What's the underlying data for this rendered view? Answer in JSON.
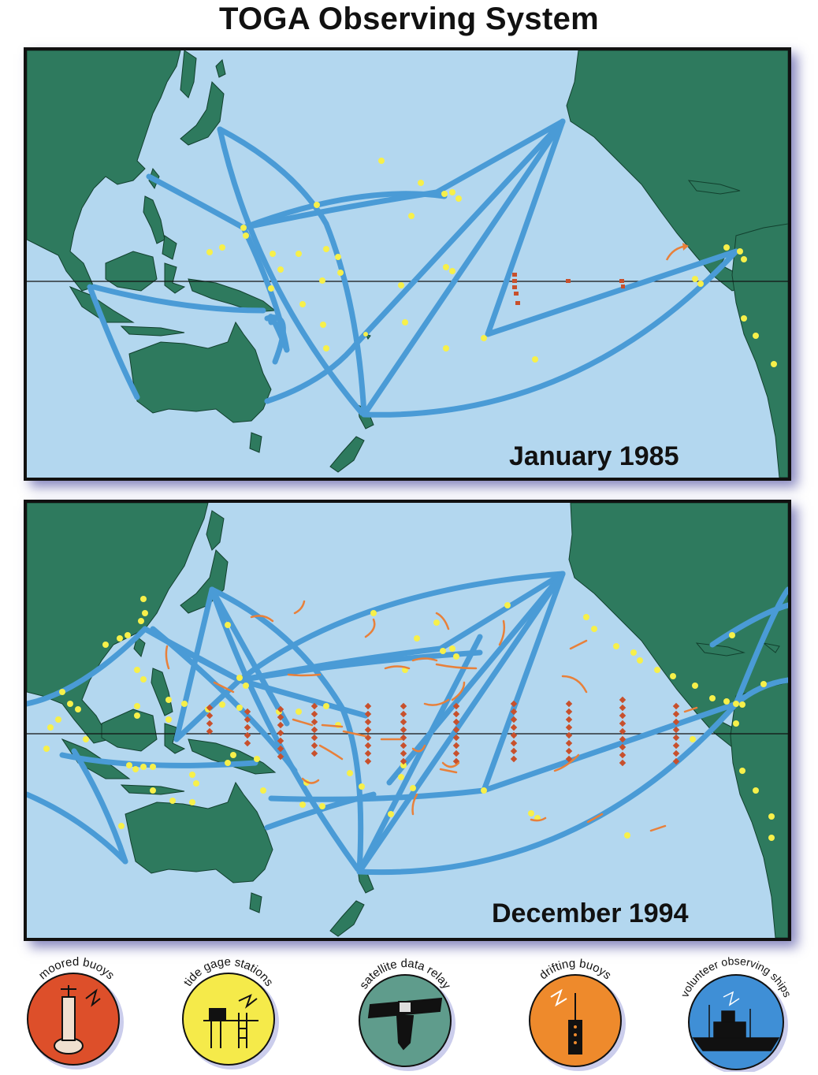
{
  "title": "TOGA Observing System",
  "panels": [
    {
      "label": "January 1985"
    },
    {
      "label": "December 1994"
    }
  ],
  "legend": [
    {
      "label": "moored  buoys",
      "color": "#dd4f2a",
      "icon": "moored-buoy-icon"
    },
    {
      "label": "tide gage stations",
      "color": "#f5ea4a",
      "icon": "tide-gage-icon"
    },
    {
      "label": "satellite data relay",
      "color": "#5f9c8c",
      "icon": "satellite-icon"
    },
    {
      "label": "drifting buoys",
      "color": "#ee8a2c",
      "icon": "drifting-buoy-icon"
    },
    {
      "label": "volunteer observing ships",
      "color": "#3f8fd6",
      "icon": "ship-icon"
    }
  ],
  "colors": {
    "ocean": "#b3d7ef",
    "land": "#2e7a5e",
    "ship_track": "#4a9bd6",
    "tide_gage": "#f7f04a",
    "moored_buoy": "#c8502c",
    "drifter": "#e8803a"
  }
}
